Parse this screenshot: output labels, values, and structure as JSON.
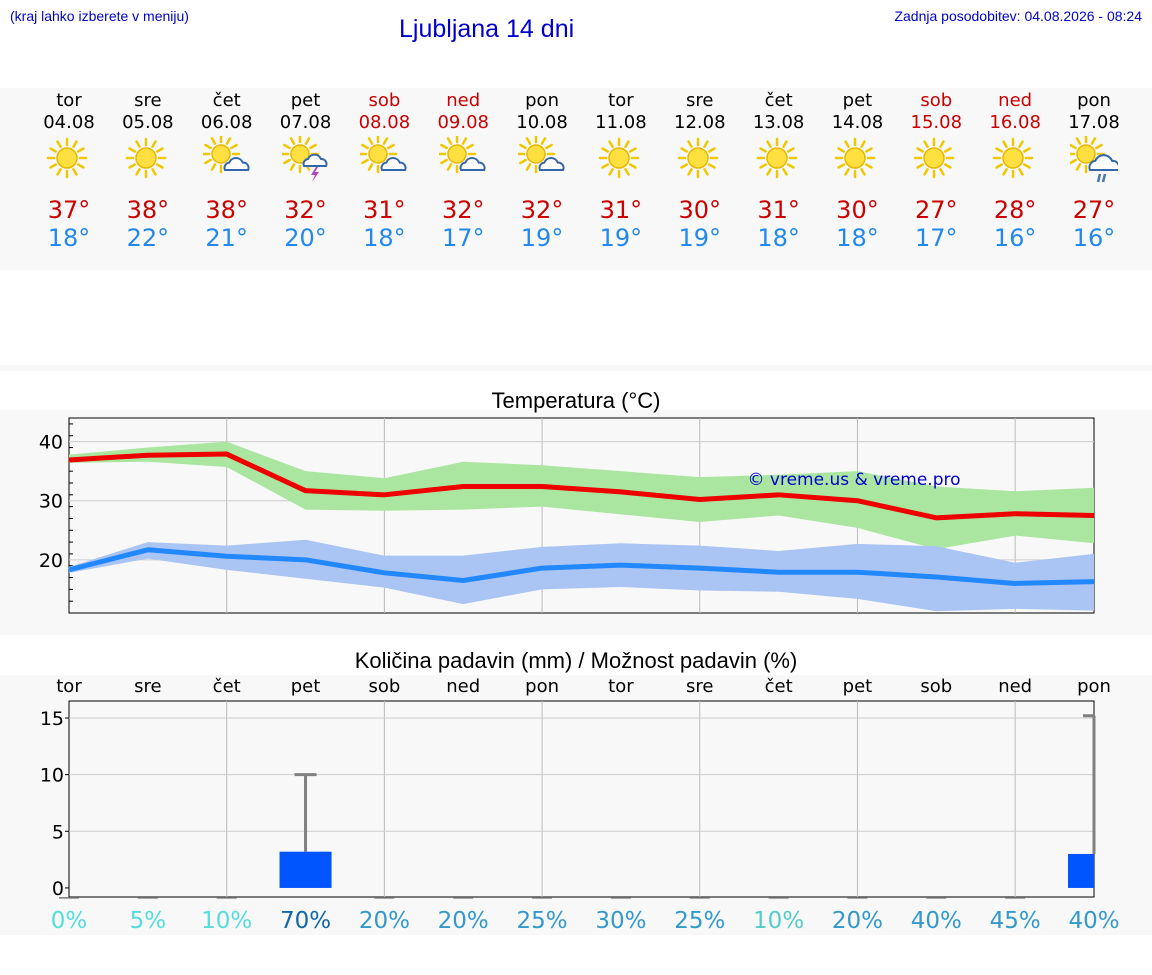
{
  "header": {
    "hint": "(kraj lahko izberete v meniju)",
    "title": "Ljubljana 14 dni",
    "updated": "Zadnja posodobitev: 04.08.2026 - 08:24"
  },
  "days": [
    {
      "name": "tor",
      "date": "04.08",
      "weekend": false,
      "icon": "sun",
      "tmax": "37°",
      "tmin": "18°"
    },
    {
      "name": "sre",
      "date": "05.08",
      "weekend": false,
      "icon": "sun",
      "tmax": "38°",
      "tmin": "22°"
    },
    {
      "name": "čet",
      "date": "06.08",
      "weekend": false,
      "icon": "sun-cloud",
      "tmax": "38°",
      "tmin": "21°"
    },
    {
      "name": "pet",
      "date": "07.08",
      "weekend": false,
      "icon": "sun-thunder",
      "tmax": "32°",
      "tmin": "20°"
    },
    {
      "name": "sob",
      "date": "08.08",
      "weekend": true,
      "icon": "sun-cloud",
      "tmax": "31°",
      "tmin": "18°"
    },
    {
      "name": "ned",
      "date": "09.08",
      "weekend": true,
      "icon": "sun-cloud",
      "tmax": "32°",
      "tmin": "17°"
    },
    {
      "name": "pon",
      "date": "10.08",
      "weekend": false,
      "icon": "sun-cloud",
      "tmax": "32°",
      "tmin": "19°"
    },
    {
      "name": "tor",
      "date": "11.08",
      "weekend": false,
      "icon": "sun",
      "tmax": "31°",
      "tmin": "19°"
    },
    {
      "name": "sre",
      "date": "12.08",
      "weekend": false,
      "icon": "sun",
      "tmax": "30°",
      "tmin": "19°"
    },
    {
      "name": "čet",
      "date": "13.08",
      "weekend": false,
      "icon": "sun",
      "tmax": "31°",
      "tmin": "18°"
    },
    {
      "name": "pet",
      "date": "14.08",
      "weekend": false,
      "icon": "sun",
      "tmax": "30°",
      "tmin": "18°"
    },
    {
      "name": "sob",
      "date": "15.08",
      "weekend": true,
      "icon": "sun",
      "tmax": "27°",
      "tmin": "17°"
    },
    {
      "name": "ned",
      "date": "16.08",
      "weekend": true,
      "icon": "sun",
      "tmax": "28°",
      "tmin": "16°"
    },
    {
      "name": "pon",
      "date": "17.08",
      "weekend": false,
      "icon": "sun-rain",
      "tmax": "27°",
      "tmin": "16°"
    }
  ],
  "colors": {
    "max": "#ee0000",
    "min": "#2288ff",
    "maxband": "#aae6a0",
    "minband": "#aac4f4",
    "bar": "#0055ff",
    "errbar": "#808080"
  },
  "chart_data": [
    {
      "type": "line",
      "title": "Temperatura (°C)",
      "watermark": "© vreme.us & vreme.pro",
      "x": [
        "04.08",
        "05.08",
        "06.08",
        "07.08",
        "08.08",
        "09.08",
        "10.08",
        "11.08",
        "12.08",
        "13.08",
        "14.08",
        "15.08",
        "16.08",
        "17.08"
      ],
      "ylim": [
        11,
        44
      ],
      "yticks": [
        20,
        30,
        40
      ],
      "series": [
        {
          "values": [
            36.9,
            37.7,
            37.9,
            31.7,
            31,
            32.4,
            32.4,
            31.5,
            30.2,
            31,
            30,
            27.1,
            27.8,
            27.5
          ],
          "band_high": [
            37.8,
            39,
            40,
            35,
            33.8,
            36.6,
            36,
            35,
            34,
            34.4,
            35,
            32.4,
            31.6,
            32.2
          ],
          "band_low": [
            36.4,
            36.6,
            35.7,
            28.5,
            28.3,
            28.5,
            29,
            27.7,
            26.4,
            27.5,
            25.4,
            21.8,
            24.1,
            22.8
          ]
        },
        {
          "values": [
            18.3,
            21.7,
            20.6,
            20,
            17.8,
            16.5,
            18.6,
            19.1,
            18.6,
            17.9,
            17.9,
            17.1,
            16,
            16.3
          ],
          "band_high": [
            18.8,
            23,
            22.4,
            23.4,
            20.7,
            20.7,
            22.2,
            22.8,
            22.4,
            21.5,
            22.7,
            22.3,
            19.5,
            21
          ],
          "band_low": [
            17.8,
            20.2,
            18.3,
            16.8,
            15.3,
            12.5,
            15,
            15.4,
            14.8,
            14.6,
            13.4,
            11.3,
            11.7,
            11.4
          ]
        }
      ],
      "grid": true
    },
    {
      "type": "bar",
      "title": "Količina padavin (mm) / Možnost padavin (%)",
      "categories": [
        "tor",
        "sre",
        "čet",
        "pet",
        "sob",
        "ned",
        "pon",
        "tor",
        "sre",
        "čet",
        "pet",
        "sob",
        "ned",
        "pon"
      ],
      "values": [
        0,
        0,
        0,
        3.2,
        0,
        0,
        0,
        0,
        0,
        0,
        0,
        0,
        0,
        3
      ],
      "error_high": [
        0,
        0,
        0,
        10,
        0,
        0,
        0,
        0,
        0,
        0,
        0,
        0,
        0,
        15.2
      ],
      "probability": [
        "0%",
        "5%",
        "10%",
        "70%",
        "20%",
        "20%",
        "25%",
        "30%",
        "25%",
        "10%",
        "20%",
        "40%",
        "45%",
        "40%"
      ],
      "probability_colors": [
        "#55dddd",
        "#55dddd",
        "#55dddd",
        "#1166aa",
        "#3399cc",
        "#3399cc",
        "#3399cc",
        "#3399cc",
        "#3399cc",
        "#55cccc",
        "#3399cc",
        "#3399cc",
        "#3399cc",
        "#3399cc"
      ],
      "ylim": [
        -0.8,
        16.5
      ],
      "yticks": [
        0,
        5,
        10,
        15
      ],
      "grid": true
    }
  ]
}
